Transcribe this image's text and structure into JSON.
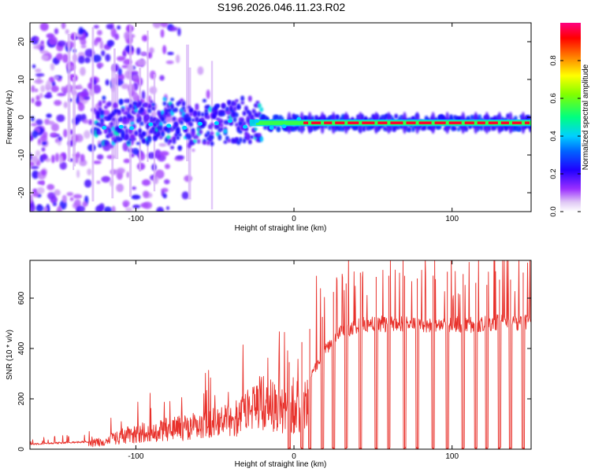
{
  "figure_title": "S196.2026.046.11.23.R02",
  "chart_data": [
    {
      "type": "heatmap",
      "title": "S196.2026.046.11.23.R02",
      "xlabel": "Height of straight line (km)",
      "ylabel": "Frequency (Hz)",
      "xlim": [
        -167,
        150
      ],
      "ylim": [
        -25,
        25
      ],
      "xticks": [
        -100,
        0,
        100
      ],
      "xtick_labels": [
        "-100",
        "0",
        "100"
      ],
      "yticks": [
        -20,
        -10,
        0,
        10,
        20
      ],
      "ytick_labels": [
        "-20",
        "-10",
        "0",
        "10",
        "20"
      ],
      "colorbar": {
        "label": "Normalized spectral amplitude",
        "range": [
          0,
          1
        ],
        "ticks": [
          0.0,
          0.2,
          0.4,
          0.6,
          0.8
        ],
        "tick_labels": [
          "0.0",
          "0.2",
          "0.4",
          "0.6",
          "0.8"
        ],
        "colormap": [
          "#ffffff",
          "#d8b8f0",
          "#8000ff",
          "#0000ff",
          "#00c8ff",
          "#00ff80",
          "#80ff00",
          "#ffff00",
          "#ff8000",
          "#ff0000",
          "#ff0080"
        ]
      },
      "features": {
        "scatter_region_x": [
          -167,
          -45
        ],
        "carrier_line_frequency_hz": -1.5,
        "carrier_strong_from_km": 5,
        "carrier_peak_amplitude": 0.95
      }
    },
    {
      "type": "line",
      "xlabel": "Height of straight line (km)",
      "ylabel": "SNR (10 * v/v)",
      "xlim": [
        -167,
        150
      ],
      "ylim": [
        0,
        750
      ],
      "xticks": [
        -100,
        0,
        100
      ],
      "xtick_labels": [
        "-100",
        "0",
        "100"
      ],
      "yticks": [
        0,
        200,
        400,
        600
      ],
      "ytick_labels": [
        "0",
        "200",
        "400",
        "600"
      ],
      "color": "#e8302a",
      "x": [
        -167,
        -160,
        -150,
        -140,
        -130,
        -120,
        -110,
        -100,
        -90,
        -80,
        -70,
        -60,
        -50,
        -40,
        -30,
        -25,
        -20,
        -15,
        -10,
        -5,
        0,
        5,
        10,
        15,
        20,
        25,
        30,
        40,
        50,
        60,
        70,
        80,
        90,
        100,
        110,
        120,
        130,
        140,
        150
      ],
      "values": [
        22,
        25,
        28,
        30,
        35,
        50,
        80,
        100,
        115,
        125,
        135,
        150,
        165,
        180,
        230,
        270,
        300,
        280,
        260,
        230,
        200,
        260,
        300,
        360,
        420,
        470,
        500,
        520,
        535,
        525,
        530,
        530,
        520,
        530,
        525,
        530,
        535,
        530,
        540
      ],
      "dropout_x": [
        -3,
        5,
        10,
        18,
        25,
        33,
        42,
        52,
        60,
        70,
        78,
        88,
        97,
        107,
        115,
        122,
        130,
        137,
        145
      ],
      "dropout_value": 0
    }
  ]
}
